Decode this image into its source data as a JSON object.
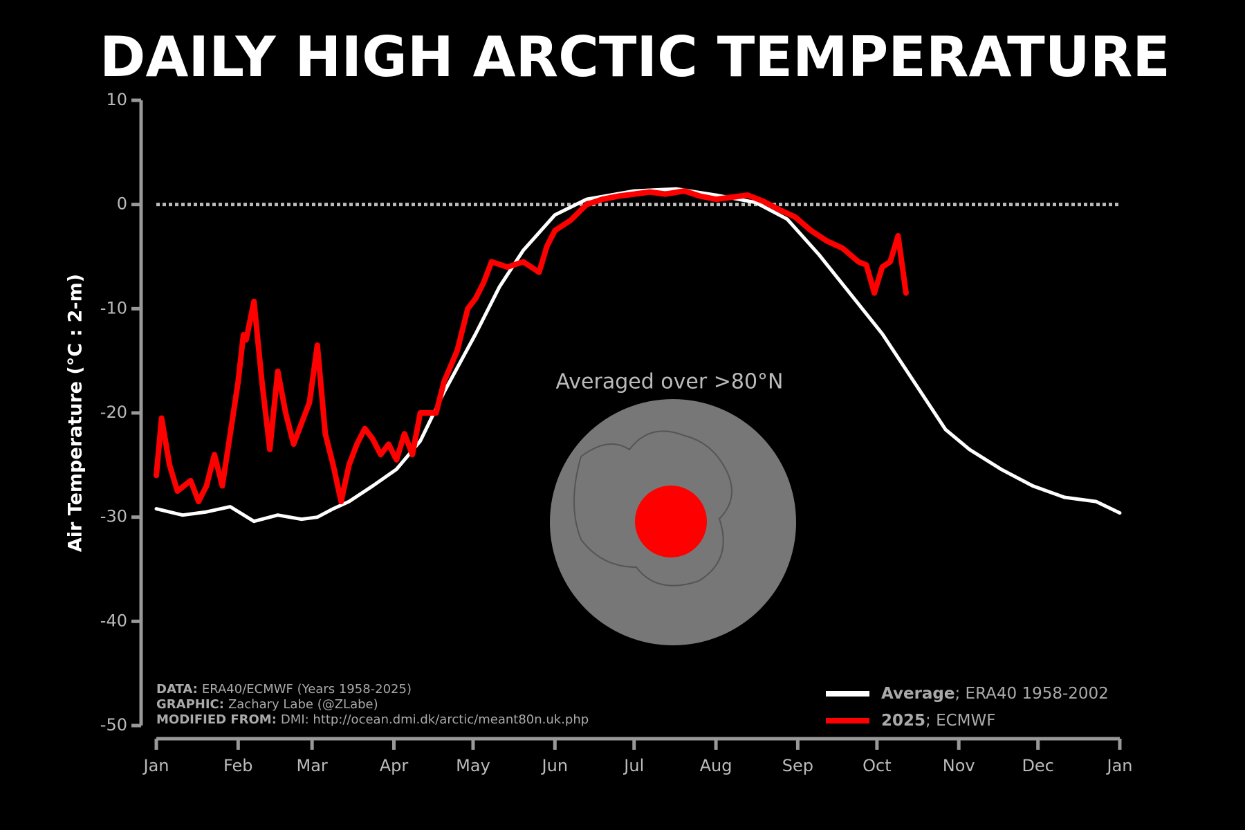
{
  "chart_data": {
    "type": "line",
    "title": "DAILY HIGH ARCTIC TEMPERATURE",
    "y_label": "Air Temperature (°C : 2-m)",
    "xlim": [
      0,
      365
    ],
    "xticks": [
      {
        "value": 0,
        "label": "Jan"
      },
      {
        "value": 31,
        "label": "Feb"
      },
      {
        "value": 59,
        "label": "Mar"
      },
      {
        "value": 90,
        "label": "Apr"
      },
      {
        "value": 120,
        "label": "May"
      },
      {
        "value": 151,
        "label": "Jun"
      },
      {
        "value": 181,
        "label": "Jul"
      },
      {
        "value": 212,
        "label": "Aug"
      },
      {
        "value": 243,
        "label": "Sep"
      },
      {
        "value": 273,
        "label": "Oct"
      },
      {
        "value": 304,
        "label": "Nov"
      },
      {
        "value": 334,
        "label": "Dec"
      },
      {
        "value": 365,
        "label": "Jan"
      }
    ],
    "ylim": [
      -50,
      10
    ],
    "yticks": [
      -50,
      -40,
      -30,
      -20,
      -10,
      0,
      10
    ],
    "hline": 0,
    "series": [
      {
        "name": "Average",
        "description": "; ERA40 1958-2002",
        "color": "#ffffff",
        "x": [
          0,
          10,
          19,
          28,
          37,
          46,
          55,
          61,
          67,
          73,
          82,
          91,
          100,
          109,
          121,
          130,
          139,
          151,
          163,
          181,
          197,
          212,
          227,
          239,
          251,
          263,
          275,
          287,
          299,
          308,
          320,
          332,
          344,
          356,
          365
        ],
        "values": [
          -29.2,
          -29.8,
          -29.5,
          -29.0,
          -30.4,
          -29.8,
          -30.2,
          -30.0,
          -29.2,
          -28.5,
          -27.0,
          -25.4,
          -22.7,
          -18.0,
          -12.4,
          -7.9,
          -4.4,
          -1.0,
          0.5,
          1.3,
          1.5,
          0.9,
          0.2,
          -1.4,
          -4.8,
          -8.6,
          -12.4,
          -17.0,
          -21.6,
          -23.5,
          -25.4,
          -27.0,
          -28.1,
          -28.5,
          -29.6
        ]
      },
      {
        "name": "2025",
        "description": "; ECMWF",
        "color": "#ff0000",
        "x": [
          0,
          2,
          5,
          8,
          13,
          16,
          19,
          22,
          25,
          28,
          31,
          33,
          34,
          37,
          40,
          43,
          46,
          49,
          52,
          55,
          58,
          61,
          64,
          67,
          70,
          73,
          76,
          79,
          82,
          85,
          88,
          91,
          94,
          97,
          100,
          103,
          106,
          109,
          114,
          118,
          121,
          124,
          127,
          133,
          139,
          145,
          148,
          151,
          157,
          163,
          169,
          175,
          181,
          187,
          193,
          200,
          206,
          212,
          218,
          224,
          230,
          236,
          242,
          248,
          254,
          260,
          266,
          269,
          272,
          275,
          278,
          281,
          284
        ],
        "values": [
          -26,
          -20.5,
          -25,
          -27.5,
          -26.5,
          -28.5,
          -27,
          -24,
          -27,
          -22,
          -17,
          -12.5,
          -13,
          -9.3,
          -17,
          -23.5,
          -16,
          -20,
          -23,
          -21,
          -19,
          -13.5,
          -22,
          -25,
          -28.5,
          -25,
          -23,
          -21.5,
          -22.5,
          -24,
          -23,
          -24.5,
          -22,
          -24,
          -20,
          -20,
          -20,
          -17,
          -14,
          -10,
          -9,
          -7.5,
          -5.5,
          -6,
          -5.5,
          -6.5,
          -4,
          -2.5,
          -1.5,
          0,
          0.5,
          0.8,
          1.0,
          1.2,
          1.0,
          1.3,
          0.8,
          0.5,
          0.7,
          0.9,
          0.3,
          -0.5,
          -1.2,
          -2.5,
          -3.5,
          -4.2,
          -5.5,
          -5.8,
          -8.5,
          -6,
          -5.5,
          -3,
          -8.5
        ]
      }
    ],
    "annotation": "Averaged over >80°N",
    "credits": [
      {
        "label": "DATA:",
        "text": "ERA40/ECMWF (Years 1958-2025)"
      },
      {
        "label": "GRAPHIC:",
        "text": "Zachary Labe (@ZLabe)"
      },
      {
        "label": "MODIFIED FROM:",
        "text": "DMI: http://ocean.dmi.dk/arctic/meant80n.uk.php"
      }
    ]
  }
}
